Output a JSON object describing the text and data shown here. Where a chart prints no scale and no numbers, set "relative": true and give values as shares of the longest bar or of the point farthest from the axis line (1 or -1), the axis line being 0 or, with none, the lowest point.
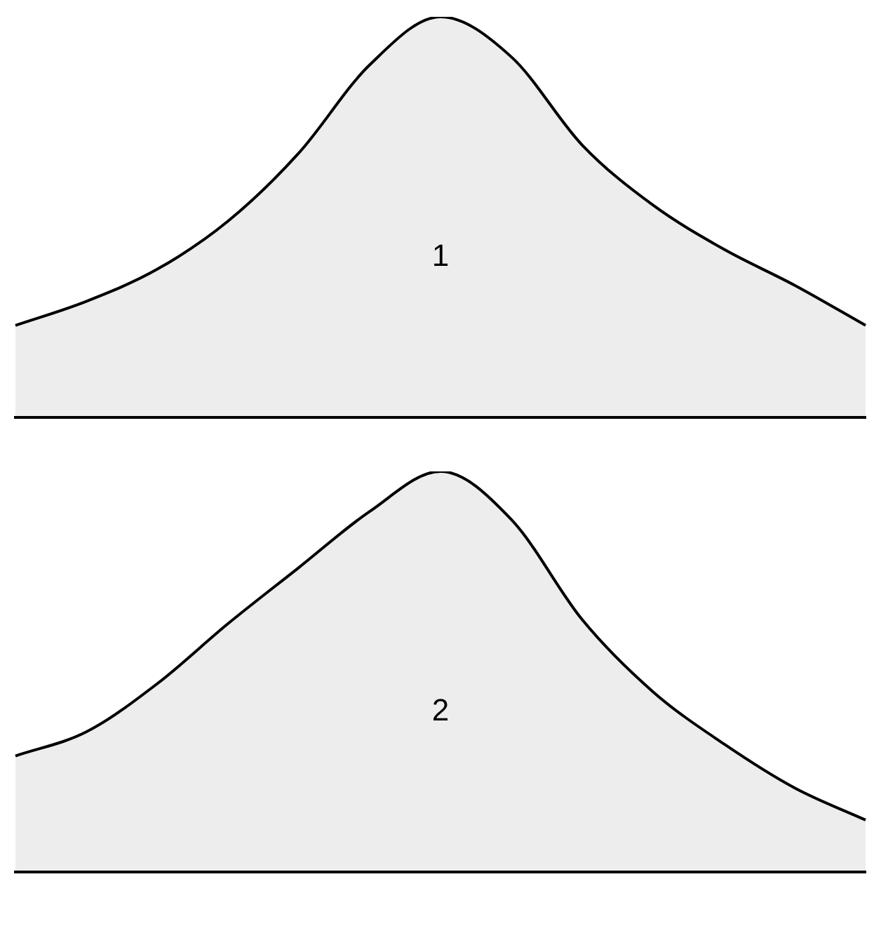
{
  "chart_data": [
    {
      "type": "area",
      "relative": true,
      "grid": false,
      "legend": false,
      "marker": "none",
      "line_style": "solid",
      "annotations": [
        "1"
      ],
      "categories": [
        null,
        null,
        null,
        null,
        null,
        null,
        null,
        null,
        null,
        null,
        null,
        null,
        null
      ],
      "series": [
        {
          "color": "#000000",
          "values": [
            0.23,
            0.29,
            0.37,
            0.49,
            0.66,
            0.88,
            1.0,
            0.9,
            0.68,
            0.53,
            0.42,
            0.33,
            0.23
          ]
        }
      ]
    },
    {
      "type": "area",
      "relative": true,
      "grid": false,
      "legend": false,
      "marker": "none",
      "line_style": "solid",
      "annotations": [
        "2"
      ],
      "categories": [
        null,
        null,
        null,
        null,
        null,
        null,
        null,
        null,
        null,
        null,
        null,
        null,
        null
      ],
      "series": [
        {
          "color": "#000000",
          "values": [
            0.29,
            0.35,
            0.47,
            0.62,
            0.76,
            0.9,
            1.0,
            0.88,
            0.63,
            0.45,
            0.32,
            0.21,
            0.13
          ]
        }
      ]
    }
  ]
}
